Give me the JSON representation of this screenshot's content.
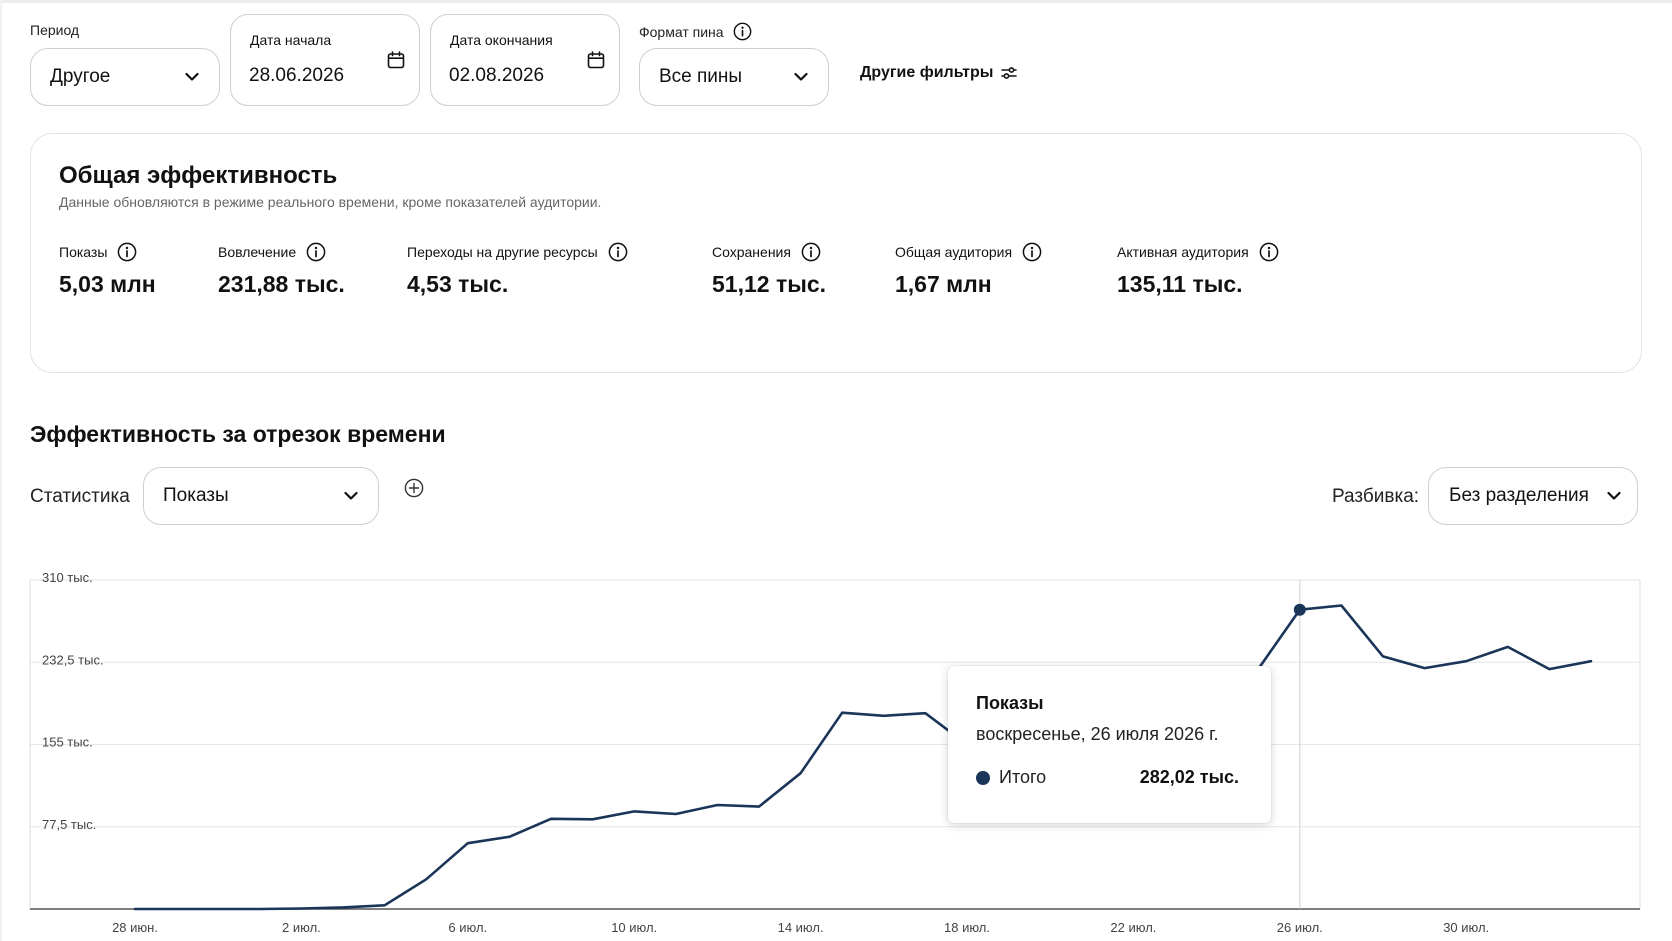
{
  "filters": {
    "period": {
      "label": "Период",
      "value": "Другое"
    },
    "start_date": {
      "label": "Дата начала",
      "value": "28.06.2026"
    },
    "end_date": {
      "label": "Дата окончания",
      "value": "02.08.2026"
    },
    "pin_format": {
      "label": "Формат пина",
      "value": "Все пины"
    },
    "other_filters_label": "Другие фильтры"
  },
  "overview": {
    "title": "Общая эффективность",
    "subtitle": "Данные обновляются в режиме реального времени, кроме показателей аудитории.",
    "metrics": [
      {
        "label": "Показы",
        "value": "5,03 млн"
      },
      {
        "label": "Вовлечение",
        "value": "231,88 тыс."
      },
      {
        "label": "Переходы на другие ресурсы",
        "value": "4,53 тыс."
      },
      {
        "label": "Сохранения",
        "value": "51,12 тыс."
      },
      {
        "label": "Общая аудитория",
        "value": "1,67 млн"
      },
      {
        "label": "Активная аудитория",
        "value": "135,11 тыс."
      }
    ]
  },
  "timeline": {
    "title": "Эффективность за отрезок времени",
    "stat_label": "Статистика",
    "stat_value": "Показы",
    "breakdown_label": "Разбивка:",
    "breakdown_value": "Без разделения"
  },
  "tooltip": {
    "title": "Показы",
    "date": "воскресенье, 26 июля 2026 г.",
    "series": "Итого",
    "value": "282,02 тыс."
  },
  "colors": {
    "line": "#1b3558",
    "grid": "#e6e6e6",
    "axis": "#555555"
  },
  "chart_data": {
    "type": "line",
    "title": "",
    "xlabel": "",
    "ylabel": "",
    "ylim": [
      0,
      310
    ],
    "y_ticks": [
      {
        "value": 77.5,
        "label": "77,5 тыс."
      },
      {
        "value": 155,
        "label": "155 тыс."
      },
      {
        "value": 232.5,
        "label": "232,5 тыс."
      },
      {
        "value": 310,
        "label": "310 тыс."
      }
    ],
    "x_ticks": [
      {
        "day": 0,
        "label": "28 июн."
      },
      {
        "day": 4,
        "label": "2 июл."
      },
      {
        "day": 8,
        "label": "6 июл."
      },
      {
        "day": 12,
        "label": "10 июл."
      },
      {
        "day": 16,
        "label": "14 июл."
      },
      {
        "day": 20,
        "label": "18 июл."
      },
      {
        "day": 24,
        "label": "22 июл."
      },
      {
        "day": 28,
        "label": "26 июл."
      },
      {
        "day": 32,
        "label": "30 июл."
      }
    ],
    "grid": true,
    "highlight_day": 28,
    "series": [
      {
        "name": "Итого",
        "values": [
          0,
          0,
          0,
          0,
          0.5,
          1.5,
          3.5,
          28,
          62,
          68,
          85,
          84.5,
          92,
          89.5,
          98,
          96.5,
          128,
          185,
          182,
          184.5,
          155,
          163,
          180,
          196,
          210,
          220,
          225,
          226,
          282.02,
          286,
          238,
          227,
          233.5,
          247,
          226,
          233.5
        ]
      }
    ]
  }
}
